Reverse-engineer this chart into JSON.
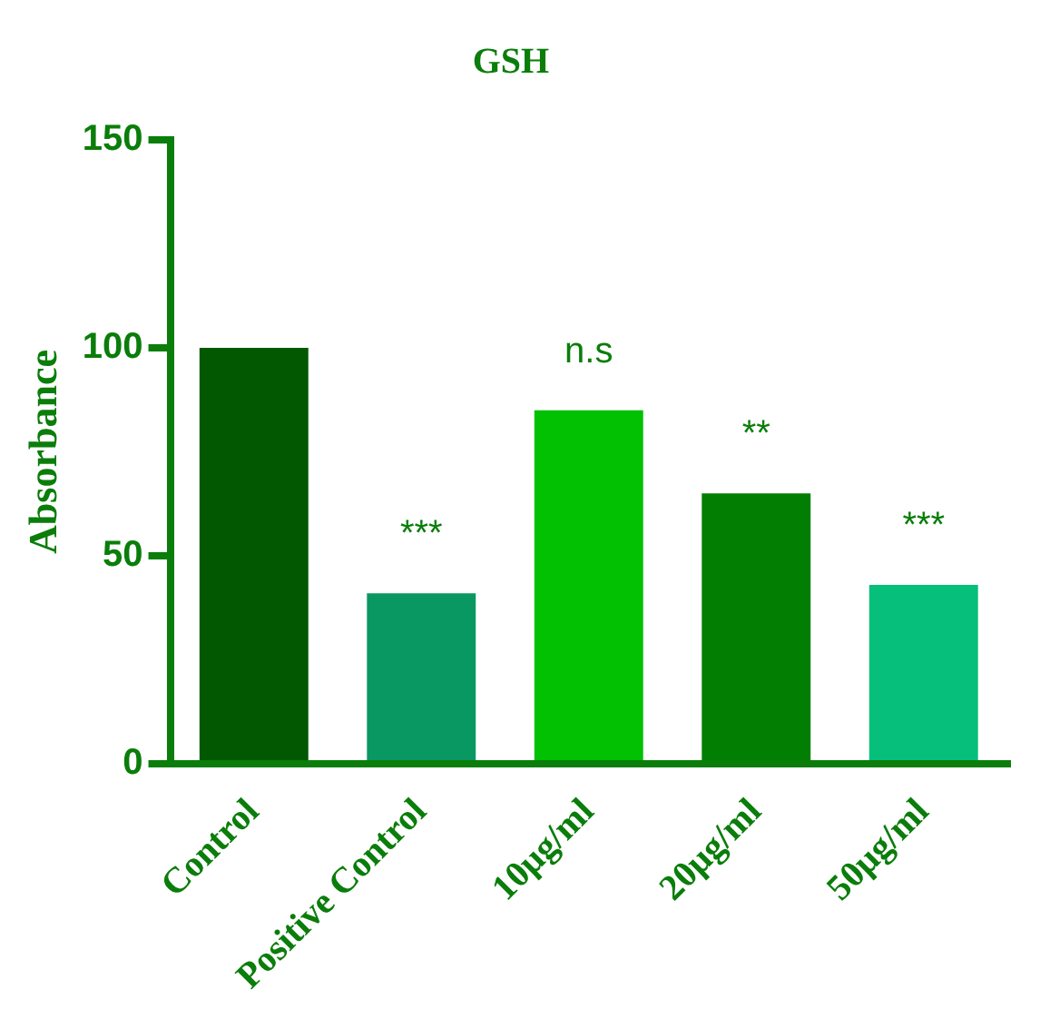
{
  "chart_data": {
    "type": "bar",
    "title": "GSH",
    "ylabel": "Absorbance",
    "categories": [
      "Control",
      "Positive Control",
      "10µg/ml",
      "20µg/ml",
      "50µg/ml"
    ],
    "values": [
      100,
      41,
      85,
      65,
      43
    ],
    "colors": [
      "#015801",
      "#0a9862",
      "#02c002",
      "#027f02",
      "#05bf7b"
    ],
    "ylim": [
      0,
      150
    ],
    "yticks": [
      0,
      50,
      100,
      150
    ],
    "grid": false,
    "annotations": [
      "***",
      "n.s",
      "**",
      "***"
    ]
  }
}
